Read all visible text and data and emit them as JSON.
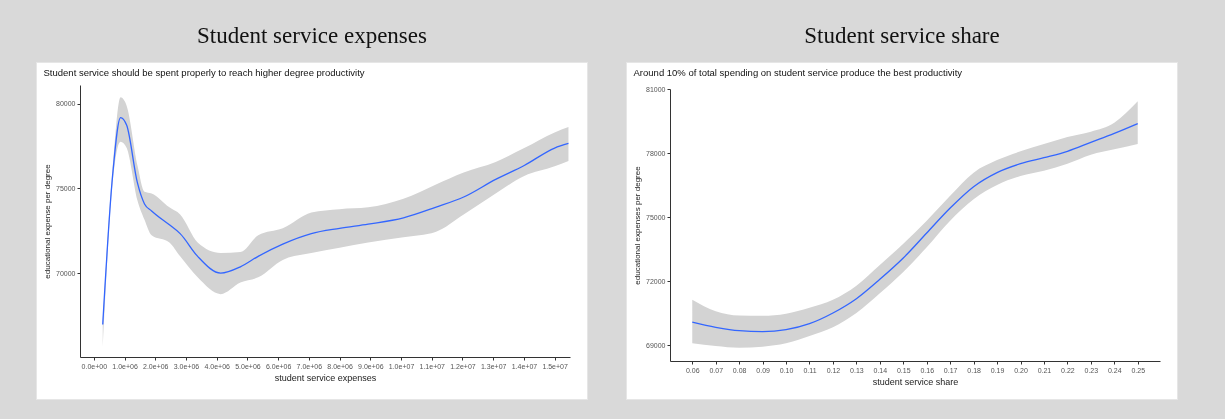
{
  "chart_data": [
    {
      "type": "line",
      "title": "Student service expenses",
      "subtitle": "Student service should be spent properly to reach higher degree productivity",
      "xlabel": "student service expenses",
      "ylabel": "educational expense per degree",
      "x": [
        290000,
        610000,
        870000,
        1070000,
        1420000,
        1650000,
        1880000,
        2460000,
        2810000,
        3380000,
        4130000,
        4770000,
        5350000,
        6150000,
        7080000,
        8000000,
        8930000,
        10080000,
        11120000,
        12040000,
        13080000,
        14010000,
        15000000,
        15450000
      ],
      "series": [
        {
          "color": "#3366ff",
          "values": [
            66970,
            75730,
            79180,
            78720,
            75320,
            74080,
            73670,
            72850,
            72330,
            70990,
            70000,
            70370,
            70990,
            71710,
            72330,
            72640,
            72890,
            73260,
            73880,
            74490,
            75530,
            76350,
            77380,
            77650
          ],
          "lower": [
            65630,
            75300,
            77750,
            77380,
            74290,
            73150,
            72230,
            71810,
            70990,
            69750,
            68760,
            69440,
            69750,
            70780,
            71190,
            71500,
            71810,
            72120,
            72430,
            73460,
            74700,
            75730,
            76300,
            76620
          ],
          "upper": [
            67280,
            76200,
            80370,
            79860,
            76350,
            74800,
            74700,
            73880,
            73460,
            71810,
            71190,
            71240,
            72230,
            72640,
            73570,
            73770,
            73880,
            74390,
            75220,
            75940,
            76560,
            77380,
            78300,
            78620
          ]
        }
      ],
      "xlim": [
        -450000,
        15500000
      ],
      "ylim": [
        65050,
        81100
      ],
      "xticks": [
        {
          "value": 0,
          "label": "0.0e+00"
        },
        {
          "value": 1000000,
          "label": "1.0e+06"
        },
        {
          "value": 2000000,
          "label": "2.0e+06"
        },
        {
          "value": 3000000,
          "label": "3.0e+06"
        },
        {
          "value": 4000000,
          "label": "4.0e+06"
        },
        {
          "value": 5000000,
          "label": "5.0e+06"
        },
        {
          "value": 6000000,
          "label": "6.0e+06"
        },
        {
          "value": 7000000,
          "label": "7.0e+06"
        },
        {
          "value": 8000000,
          "label": "8.0e+06"
        },
        {
          "value": 9000000,
          "label": "9.0e+06"
        },
        {
          "value": 10000000,
          "label": "1.0e+07"
        },
        {
          "value": 11000000,
          "label": "1.1e+07"
        },
        {
          "value": 12000000,
          "label": "1.2e+07"
        },
        {
          "value": 13000000,
          "label": "1.3e+07"
        },
        {
          "value": 14000000,
          "label": "1.4e+07"
        },
        {
          "value": 15000000,
          "label": "1.5e+07"
        }
      ],
      "yticks": [
        70000,
        75000,
        80000
      ],
      "grid": false
    },
    {
      "type": "line",
      "title": "Student service share",
      "subtitle": "Around 10% of total spending on student service produce the best productivity",
      "xlabel": "student service share",
      "ylabel": "educational expenses per degree",
      "x": [
        0.06,
        0.07,
        0.08,
        0.09,
        0.1,
        0.11,
        0.12,
        0.13,
        0.14,
        0.15,
        0.16,
        0.17,
        0.18,
        0.19,
        0.2,
        0.21,
        0.22,
        0.23,
        0.24,
        0.25
      ],
      "series": [
        {
          "color": "#3366ff",
          "values": [
            70070,
            69830,
            69670,
            69630,
            69720,
            70000,
            70500,
            71170,
            72080,
            73080,
            74250,
            75420,
            76420,
            77080,
            77500,
            77780,
            78080,
            78500,
            78920,
            79380
          ],
          "lower": [
            69080,
            68950,
            68870,
            68920,
            69080,
            69420,
            69830,
            70500,
            71420,
            72420,
            73580,
            74830,
            75830,
            76500,
            76920,
            77170,
            77500,
            77920,
            78170,
            78420
          ],
          "upper": [
            71120,
            70580,
            70380,
            70370,
            70470,
            70750,
            71120,
            71780,
            72750,
            73750,
            74830,
            76000,
            77080,
            77670,
            78080,
            78420,
            78750,
            79000,
            79420,
            80420
          ]
        }
      ],
      "xlim": [
        0.0505,
        0.2595
      ],
      "ylim": [
        68250,
        81000
      ],
      "xticks": [
        0.06,
        0.07,
        0.08,
        0.09,
        {
          "value": 0.1,
          "label": "0.10"
        },
        0.11,
        0.12,
        0.13,
        0.14,
        0.15,
        0.16,
        0.17,
        0.18,
        0.19,
        {
          "value": 0.2,
          "label": "0.20"
        },
        0.21,
        0.22,
        0.23,
        0.24,
        0.25
      ],
      "yticks": [
        69000,
        72000,
        75000,
        78000,
        81000
      ],
      "grid": false
    }
  ]
}
